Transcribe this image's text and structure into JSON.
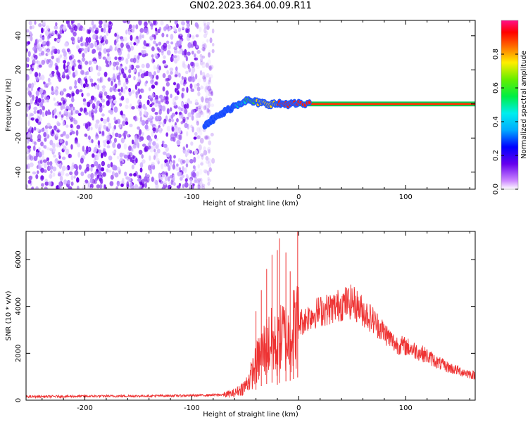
{
  "page": {
    "title": "GN02.2023.364.00.09.R11"
  },
  "colors": {
    "snr_line": "#ee3333",
    "noise_purple": "#7711ee",
    "axis": "#000000"
  },
  "colorbar": {
    "label": "Normalized spectral amplitude",
    "range": [
      0,
      1
    ],
    "ticks": [
      0.0,
      0.2,
      0.4,
      0.6,
      0.8
    ],
    "tick_labels": [
      "0.0",
      "0.2",
      "0.4",
      "0.6",
      "0.8"
    ],
    "colormap": "gist_ncar-like (purple-blue-cyan-green-yellow-red-magenta)"
  },
  "chart_data": [
    {
      "type": "heatmap",
      "title": "",
      "xlabel": "Height of straight line (km)",
      "ylabel": "Frequency (Hz)",
      "xlim": [
        -255,
        165
      ],
      "ylim": [
        -50,
        49
      ],
      "x_ticks": [
        -200,
        -100,
        0,
        100
      ],
      "x_tick_labels": [
        "-200",
        "-100",
        "0",
        "100"
      ],
      "y_ticks": [
        -40,
        -20,
        0,
        20,
        40
      ],
      "y_tick_labels": [
        "-40",
        "-20",
        "0",
        "20",
        "40"
      ],
      "noise_region_x": [
        -255,
        -80
      ],
      "signal_track": {
        "x": [
          -88,
          -80,
          -70,
          -60,
          -50,
          -40,
          -30,
          -20,
          -10,
          0,
          20,
          60,
          100,
          165
        ],
        "frequency": [
          -12,
          -9,
          -5,
          -1,
          2,
          1,
          0,
          0,
          0,
          0,
          0,
          0,
          0,
          0
        ],
        "normalized_amplitude": [
          0.3,
          0.35,
          0.4,
          0.45,
          0.55,
          0.7,
          0.8,
          0.85,
          0.9,
          0.95,
          0.9,
          0.9,
          0.9,
          0.9
        ]
      }
    },
    {
      "type": "line",
      "title": "",
      "xlabel": "Height of straight line (km)",
      "ylabel": "SNR (10 * v/v)",
      "xlim": [
        -255,
        165
      ],
      "ylim": [
        0,
        7200
      ],
      "x_ticks": [
        -200,
        -100,
        0,
        100
      ],
      "x_tick_labels": [
        "-200",
        "-100",
        "0",
        "100"
      ],
      "y_ticks": [
        0,
        2000,
        4000,
        6000
      ],
      "y_tick_labels": [
        "0",
        "2000",
        "4000",
        "6000"
      ],
      "series": [
        {
          "x": [
            -255,
            -200,
            -150,
            -100,
            -70,
            -60,
            -50,
            -45,
            -40,
            -35,
            -30,
            -25,
            -20,
            -15,
            -10,
            -5,
            0,
            5,
            10,
            20,
            30,
            40,
            50,
            60,
            70,
            80,
            90,
            100,
            110,
            120,
            130,
            140,
            150,
            165
          ],
          "y": [
            150,
            170,
            180,
            200,
            230,
            300,
            600,
            1000,
            1500,
            2000,
            2300,
            2500,
            2200,
            2800,
            2600,
            3000,
            3300,
            3400,
            3600,
            3800,
            3900,
            4100,
            4200,
            3800,
            3400,
            2900,
            2400,
            2300,
            2100,
            1900,
            1600,
            1400,
            1250,
            1050
          ]
        }
      ],
      "spikes": {
        "x": [
          -40,
          -35,
          -30,
          -25,
          -20,
          -18,
          -12,
          -8,
          -5,
          -1
        ],
        "y": [
          3800,
          4700,
          5600,
          6200,
          6400,
          6900,
          6300,
          5500,
          4700,
          7200
        ]
      }
    }
  ]
}
